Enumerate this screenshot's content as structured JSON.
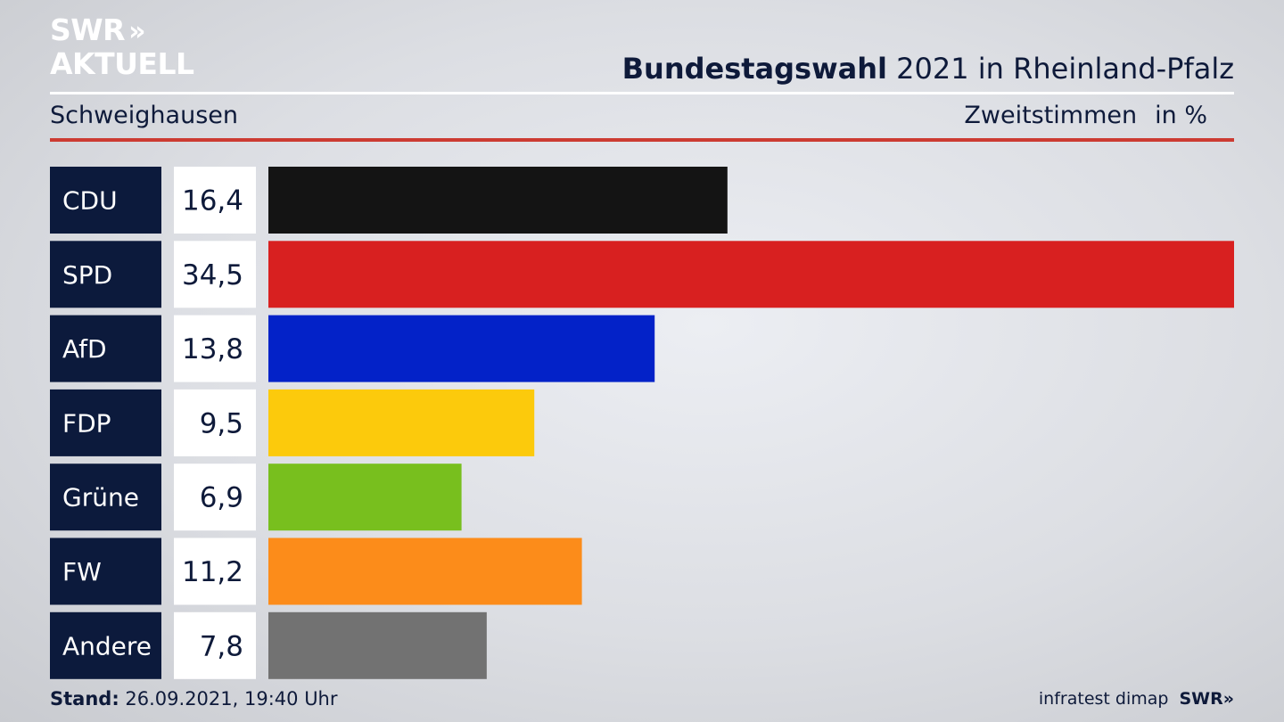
{
  "brand": {
    "logo_line1": "SWR",
    "logo_chevrons": "»",
    "logo_line2": "AKTUELL"
  },
  "header": {
    "title_bold": "Bundestagswahl",
    "title_rest": "2021 in Rheinland-Pfalz",
    "location": "Schweighausen",
    "measure": "Zweitstimmen",
    "unit": "in %"
  },
  "chart_data": {
    "type": "bar",
    "orientation": "horizontal",
    "categories": [
      "CDU",
      "SPD",
      "AfD",
      "FDP",
      "Grüne",
      "FW",
      "Andere"
    ],
    "values": [
      16.4,
      34.5,
      13.8,
      9.5,
      6.9,
      11.2,
      7.8
    ],
    "value_labels": [
      "16,4",
      "34,5",
      "13,8",
      "9,5",
      "6,9",
      "11,2",
      "7,8"
    ],
    "colors": [
      "#141414",
      "#d82020",
      "#0322c8",
      "#fcca0c",
      "#78bf1e",
      "#fc8c1a",
      "#727272"
    ],
    "xlim": [
      0,
      34.5
    ],
    "grid": false
  },
  "footer": {
    "stand_label": "Stand:",
    "stand_value": "26.09.2021, 19:40 Uhr",
    "source": "infratest dimap",
    "swr_mark": "SWR»"
  },
  "colors": {
    "label_box": "#0c1a3c",
    "value_box": "#ffffff",
    "accent_rule": "#cc3b32",
    "text": "#0e1a3a"
  }
}
